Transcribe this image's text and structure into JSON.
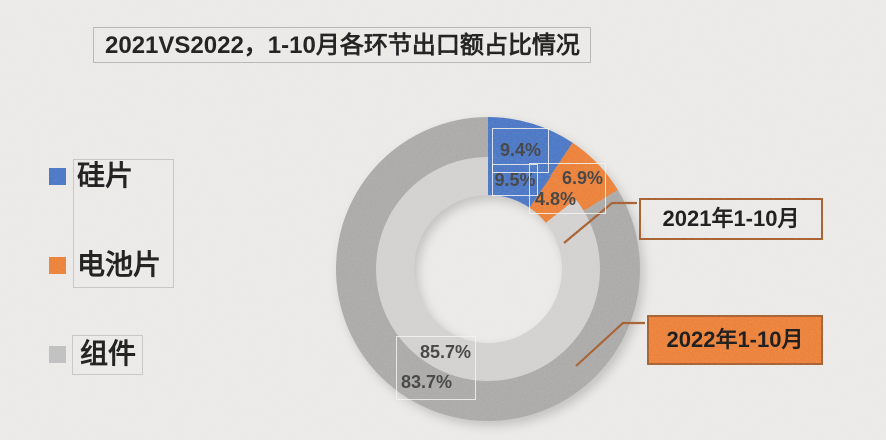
{
  "title": "2021VS2022，1-10月各环节出口额占比情况",
  "legend": {
    "items": [
      {
        "id": "wafer",
        "label": "硅片",
        "color": "#4472C4"
      },
      {
        "id": "cell",
        "label": "电池片",
        "color": "#ED7D31"
      },
      {
        "id": "module",
        "label": "组件",
        "color": "#BFBFBF"
      }
    ]
  },
  "chart_data": {
    "type": "pie",
    "subtype": "double-ring-donut",
    "title": "2021VS2022，1-10月各环节出口额占比情况",
    "categories": [
      "硅片",
      "电池片",
      "组件"
    ],
    "series": [
      {
        "name": "2021年1-10月",
        "ring": "inner",
        "values": [
          9.5,
          4.8,
          85.7
        ],
        "colors": [
          "#4472C4",
          "#ED7D31",
          "#D3D1D0"
        ]
      },
      {
        "name": "2022年1-10月",
        "ring": "outer",
        "values": [
          9.4,
          6.9,
          83.7
        ],
        "colors": [
          "#4472C4",
          "#ED7D31",
          "#A9A8A7"
        ]
      }
    ],
    "start_angle_deg": 0,
    "direction": "clockwise",
    "legend_position": "left",
    "data_labels": {
      "outer_wafer": "9.4%",
      "inner_wafer": "9.5%",
      "outer_cell": "6.9%",
      "inner_cell": "4.8%",
      "inner_module": "85.7%",
      "outer_module": "83.7%"
    },
    "callouts": [
      {
        "label": "2021年1-10月",
        "fill": "transparent",
        "border": "#A55A28"
      },
      {
        "label": "2022年1-10月",
        "fill": "#ED7D31",
        "border": "#A55A28"
      }
    ],
    "leader_line_color": "#A55A28"
  }
}
